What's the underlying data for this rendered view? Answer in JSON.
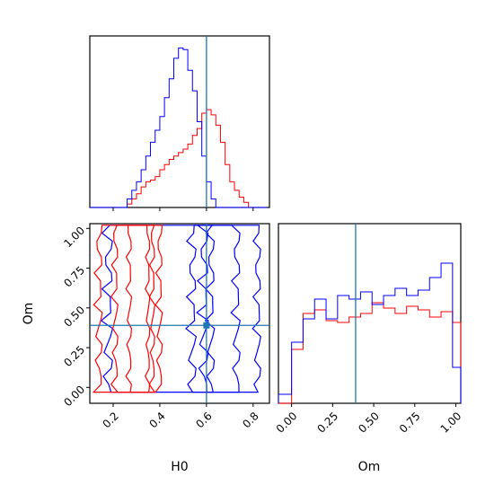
{
  "chart_data": {
    "type": "corner",
    "parameters": [
      "H0",
      "Om"
    ],
    "truth": {
      "H0": 0.6,
      "Om": 0.39
    },
    "truth_color": "#1f77b4",
    "series": [
      {
        "color": "#ff0000"
      },
      {
        "color": "#0000ff"
      }
    ],
    "hist_H0": {
      "xlim": [
        0.1,
        0.87
      ],
      "bins": [
        0.1,
        0.12,
        0.14,
        0.16,
        0.18,
        0.2,
        0.22,
        0.24,
        0.26,
        0.28,
        0.3,
        0.32,
        0.34,
        0.36,
        0.38,
        0.4,
        0.42,
        0.44,
        0.46,
        0.48,
        0.5,
        0.52,
        0.54,
        0.56,
        0.58,
        0.6,
        0.62,
        0.64,
        0.66,
        0.68,
        0.7,
        0.72,
        0.74,
        0.76,
        0.78,
        0.8,
        0.82,
        0.84,
        0.86
      ],
      "series_counts": [
        [
          0,
          0,
          0,
          0,
          0,
          0,
          0,
          0,
          0.02,
          0.05,
          0.08,
          0.12,
          0.15,
          0.16,
          0.18,
          0.22,
          0.25,
          0.28,
          0.3,
          0.32,
          0.34,
          0.37,
          0.42,
          0.46,
          0.55,
          0.57,
          0.54,
          0.48,
          0.38,
          0.25,
          0.15,
          0.1,
          0.06,
          0.03,
          0,
          0,
          0,
          0
        ],
        [
          0,
          0,
          0,
          0,
          0,
          0,
          0,
          0,
          0.05,
          0.1,
          0.15,
          0.22,
          0.3,
          0.38,
          0.45,
          0.53,
          0.64,
          0.75,
          0.87,
          0.93,
          0.92,
          0.8,
          0.68,
          0.5,
          0.3,
          0.15,
          0.05,
          0,
          0,
          0,
          0,
          0,
          0,
          0,
          0,
          0,
          0,
          0
        ]
      ]
    },
    "hist_Om": {
      "xlim": [
        -0.08,
        1.03
      ],
      "bins": [
        -0.08,
        0.0,
        0.07,
        0.14,
        0.21,
        0.28,
        0.35,
        0.42,
        0.49,
        0.56,
        0.63,
        0.7,
        0.77,
        0.84,
        0.91,
        0.98,
        1.03
      ],
      "series_counts": [
        [
          0,
          0.3,
          0.5,
          0.52,
          0.46,
          0.45,
          0.48,
          0.5,
          0.56,
          0.53,
          0.5,
          0.54,
          0.52,
          0.48,
          0.51,
          0.45
        ],
        [
          0.05,
          0.34,
          0.47,
          0.58,
          0.47,
          0.6,
          0.58,
          0.62,
          0.55,
          0.6,
          0.64,
          0.6,
          0.63,
          0.7,
          0.78,
          0.2
        ]
      ]
    },
    "joint": {
      "xlim": [
        0.1,
        0.87
      ],
      "ylim": [
        -0.1,
        1.03
      ]
    },
    "x_ticks_H0": [
      "0.2",
      "0.4",
      "0.6",
      "0.8"
    ],
    "y_ticks_Om": [
      "0.00",
      "0.25",
      "0.50",
      "0.75",
      "1.00"
    ],
    "x_ticks_Om": [
      "0.00",
      "0.25",
      "0.50",
      "0.75",
      "1.00"
    ],
    "xlabel_H0": "H0",
    "xlabel_Om": "Om",
    "ylabel_Om": "Om"
  }
}
